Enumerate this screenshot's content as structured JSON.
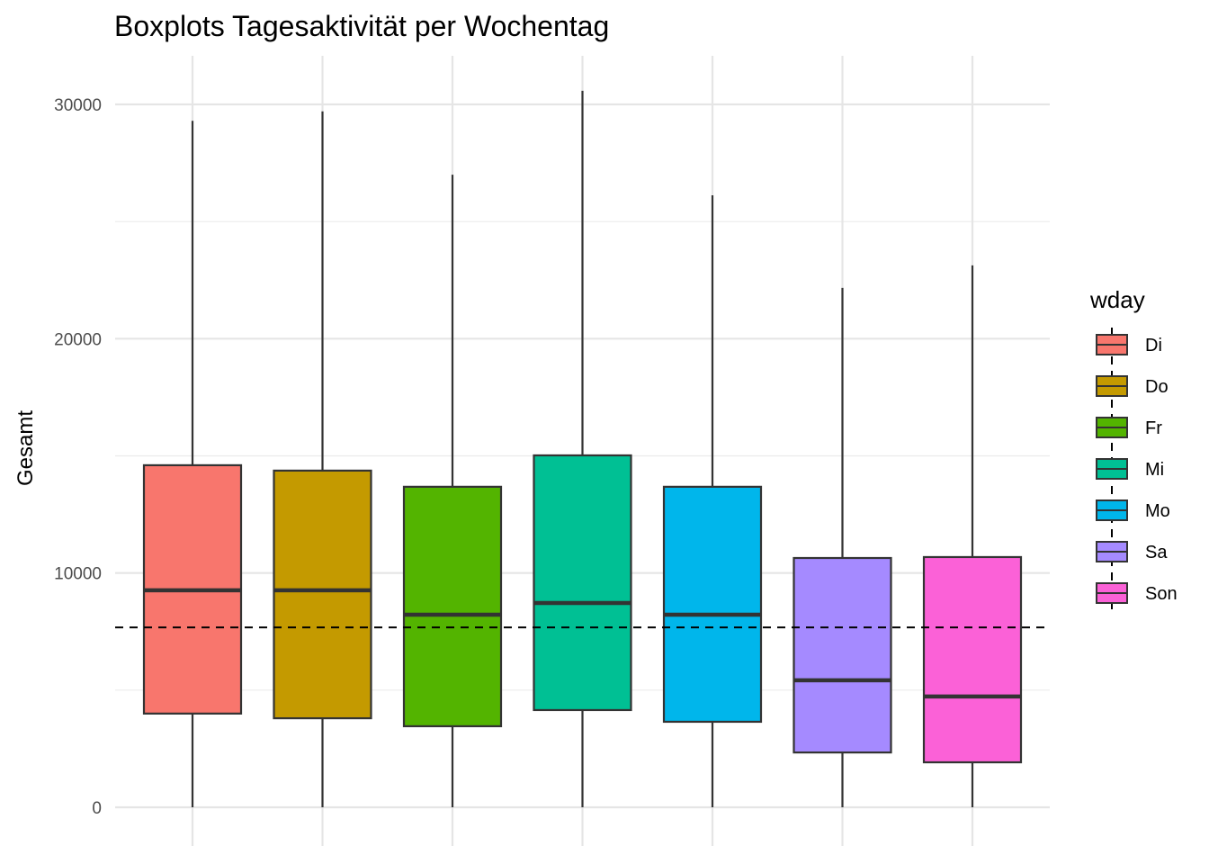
{
  "chart_data": {
    "type": "boxplot",
    "title": "Boxplots Tagesaktivität per Wochentag",
    "xlabel": "",
    "ylabel": "Gesamt",
    "ylim": [
      -1200,
      32000
    ],
    "yticks": [
      0,
      10000,
      20000,
      30000
    ],
    "ytick_labels": [
      "0",
      "10000",
      "20000",
      "30000"
    ],
    "grid": true,
    "reference_line": {
      "value": 7680,
      "style": "dashed"
    },
    "legend": {
      "title": "wday",
      "placement": "right"
    },
    "categories": [
      "Di",
      "Do",
      "Fr",
      "Mi",
      "Mo",
      "Sa",
      "Son"
    ],
    "colors": [
      "#F8766D",
      "#C49A00",
      "#53B400",
      "#00C094",
      "#00B6EB",
      "#A58AFF",
      "#FB61D7"
    ],
    "boxes": [
      {
        "name": "Di",
        "min": 0,
        "q1": 4000,
        "median": 9260,
        "q3": 14600,
        "max": 29300
      },
      {
        "name": "Do",
        "min": 0,
        "q1": 3800,
        "median": 9260,
        "q3": 14370,
        "max": 29700
      },
      {
        "name": "Fr",
        "min": 0,
        "q1": 3460,
        "median": 8220,
        "q3": 13680,
        "max": 27000
      },
      {
        "name": "Mi",
        "min": 0,
        "q1": 4150,
        "median": 8720,
        "q3": 15020,
        "max": 30580
      },
      {
        "name": "Mo",
        "min": 0,
        "q1": 3650,
        "median": 8220,
        "q3": 13680,
        "max": 26120
      },
      {
        "name": "Sa",
        "min": 0,
        "q1": 2340,
        "median": 5420,
        "q3": 10640,
        "max": 22170
      },
      {
        "name": "Son",
        "min": 0,
        "q1": 1920,
        "median": 4730,
        "q3": 10680,
        "max": 23130
      }
    ]
  }
}
